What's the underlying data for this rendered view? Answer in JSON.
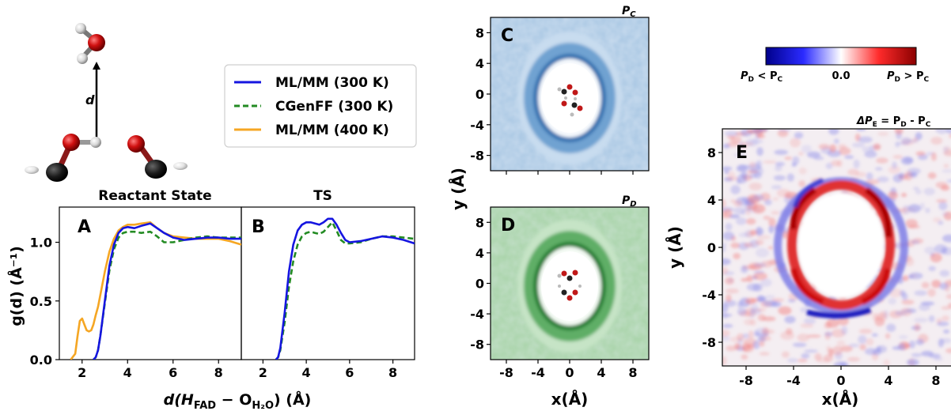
{
  "figure": {
    "molecule": {
      "distance_label": "d"
    },
    "legend": [
      {
        "name": "ML/MM (300 K)",
        "color": "#1515e0",
        "dash": false
      },
      {
        "name": "CGenFF (300 K)",
        "color": "#238b23",
        "dash": true
      },
      {
        "name": "ML/MM (400 K)",
        "color": "#f5a623",
        "dash": false
      }
    ],
    "rdf": {
      "ylabel": "g(d) (Å⁻¹)",
      "xlabel_main": "d(H",
      "xlabel_sub1": "FAD",
      "xlabel_mid": " − O",
      "xlabel_sub2": "H₂O",
      "xlabel_end": ") (Å)",
      "yticks": [
        "0.0",
        "0.5",
        "1.0"
      ],
      "xticks": [
        "2",
        "4",
        "6",
        "8"
      ]
    },
    "maps": {
      "ylabel": "y (Å)",
      "xlabel": "x(Å)",
      "ticks": [
        "8",
        "4",
        "0",
        "-4",
        "-8"
      ],
      "xticks": [
        "-8",
        "-4",
        "0",
        "4",
        "8"
      ],
      "panel_C_title": "C",
      "panel_D_title": "D",
      "panel_E_title": "E",
      "color_C": "#3a78b8",
      "color_D": "#1f7a2e"
    },
    "colorbar": {
      "left_label_main": "P",
      "left_label_sub1": "D",
      "left_label_mid": " < P",
      "left_label_sub2": "C",
      "center_label": "0.0",
      "right_label_main": "P",
      "right_label_sub1": "D",
      "right_label_mid": " > P",
      "right_label_sub2": "C",
      "colors": [
        "#00008b",
        "#ffffff",
        "#8b0000"
      ]
    },
    "title_E": {
      "delta": "ΔP",
      "sub1": "E",
      "mid": " = P",
      "sub2": "D",
      "mid2": " - P",
      "sub3": "C"
    },
    "title_C": {
      "main": "P",
      "sub": "C"
    },
    "title_D": {
      "main": "P",
      "sub": "D"
    }
  },
  "chart_data": [
    {
      "panel": "A",
      "title": "Reactant State",
      "type": "line",
      "xlim": [
        1,
        9
      ],
      "ylim": [
        0,
        1.3
      ],
      "series": [
        {
          "name": "ML/MM (300 K)",
          "color": "#1515e0",
          "x": [
            2.5,
            2.6,
            2.7,
            2.8,
            3.0,
            3.2,
            3.4,
            3.6,
            3.8,
            4.0,
            4.3,
            4.6,
            5.0,
            5.3,
            5.6,
            6.0,
            6.5,
            7.0,
            7.5,
            8.0,
            8.5,
            9.0
          ],
          "y": [
            0.0,
            0.02,
            0.08,
            0.2,
            0.5,
            0.8,
            0.98,
            1.08,
            1.12,
            1.13,
            1.12,
            1.14,
            1.16,
            1.12,
            1.08,
            1.04,
            1.02,
            1.03,
            1.04,
            1.04,
            1.03,
            1.03
          ]
        },
        {
          "name": "CGenFF (300 K)",
          "color": "#238b23",
          "x": [
            2.5,
            2.6,
            2.7,
            2.8,
            3.0,
            3.2,
            3.4,
            3.6,
            3.8,
            4.0,
            4.3,
            4.6,
            5.0,
            5.3,
            5.6,
            6.0,
            6.5,
            7.0,
            7.5,
            8.0,
            8.5,
            9.0
          ],
          "y": [
            0.0,
            0.02,
            0.08,
            0.2,
            0.48,
            0.76,
            0.94,
            1.04,
            1.08,
            1.09,
            1.09,
            1.08,
            1.09,
            1.05,
            1.0,
            1.0,
            1.02,
            1.04,
            1.05,
            1.04,
            1.04,
            1.04
          ]
        },
        {
          "name": "ML/MM (400 K)",
          "color": "#f5a623",
          "x": [
            1.5,
            1.7,
            1.8,
            1.9,
            2.0,
            2.1,
            2.2,
            2.3,
            2.4,
            2.5,
            2.6,
            2.7,
            2.8,
            3.0,
            3.2,
            3.4,
            3.6,
            3.8,
            4.0,
            4.3,
            4.6,
            5.0,
            5.3,
            5.6,
            6.0,
            6.5,
            7.0,
            7.5,
            8.0,
            8.5,
            9.0
          ],
          "y": [
            0.0,
            0.05,
            0.2,
            0.33,
            0.35,
            0.3,
            0.25,
            0.24,
            0.25,
            0.3,
            0.38,
            0.45,
            0.55,
            0.75,
            0.92,
            1.03,
            1.1,
            1.13,
            1.15,
            1.15,
            1.16,
            1.17,
            1.12,
            1.08,
            1.05,
            1.04,
            1.03,
            1.03,
            1.03,
            1.01,
            0.98
          ]
        }
      ]
    },
    {
      "panel": "B",
      "title": "TS",
      "type": "line",
      "xlim": [
        1,
        9
      ],
      "ylim": [
        0,
        1.3
      ],
      "series": [
        {
          "name": "ML/MM (300 K)",
          "color": "#1515e0",
          "x": [
            2.6,
            2.7,
            2.8,
            3.0,
            3.2,
            3.4,
            3.6,
            3.8,
            4.0,
            4.2,
            4.4,
            4.6,
            4.8,
            5.0,
            5.2,
            5.4,
            5.6,
            5.8,
            6.0,
            6.5,
            7.0,
            7.5,
            8.0,
            8.5,
            9.0
          ],
          "y": [
            0.0,
            0.02,
            0.1,
            0.4,
            0.75,
            0.98,
            1.1,
            1.15,
            1.17,
            1.17,
            1.16,
            1.15,
            1.17,
            1.2,
            1.2,
            1.15,
            1.08,
            1.02,
            1.0,
            1.01,
            1.03,
            1.05,
            1.04,
            1.02,
            0.99
          ]
        },
        {
          "name": "CGenFF (300 K)",
          "color": "#238b23",
          "x": [
            2.6,
            2.7,
            2.8,
            3.0,
            3.2,
            3.4,
            3.6,
            3.8,
            4.0,
            4.2,
            4.4,
            4.6,
            4.8,
            5.0,
            5.2,
            5.4,
            5.6,
            5.8,
            6.0,
            6.5,
            7.0,
            7.5,
            8.0,
            8.5,
            9.0
          ],
          "y": [
            0.0,
            0.02,
            0.08,
            0.32,
            0.62,
            0.84,
            0.98,
            1.05,
            1.08,
            1.09,
            1.08,
            1.07,
            1.09,
            1.13,
            1.17,
            1.1,
            1.02,
            0.99,
            0.99,
            1.0,
            1.03,
            1.05,
            1.05,
            1.04,
            1.03
          ]
        }
      ]
    },
    {
      "panel": "C",
      "type": "heatmap",
      "title": "P_C",
      "xlim": [
        -10,
        10
      ],
      "ylim": [
        -10,
        10
      ],
      "cavity_center": [
        0,
        0
      ],
      "cavity_radius_x": 3.8,
      "cavity_radius_y": 5.0
    },
    {
      "panel": "D",
      "type": "heatmap",
      "title": "P_D",
      "xlim": [
        -10,
        10
      ],
      "ylim": [
        -10,
        10
      ],
      "cavity_center": [
        0,
        0
      ],
      "cavity_radius_x": 3.8,
      "cavity_radius_y": 5.0
    },
    {
      "panel": "E",
      "type": "heatmap",
      "title": "ΔP_E = P_D - P_C",
      "xlim": [
        -10,
        10
      ],
      "ylim": [
        -10,
        10
      ],
      "cavity_center": [
        0,
        0
      ],
      "cavity_radius_x": 4.2,
      "cavity_radius_y": 5.8
    }
  ]
}
